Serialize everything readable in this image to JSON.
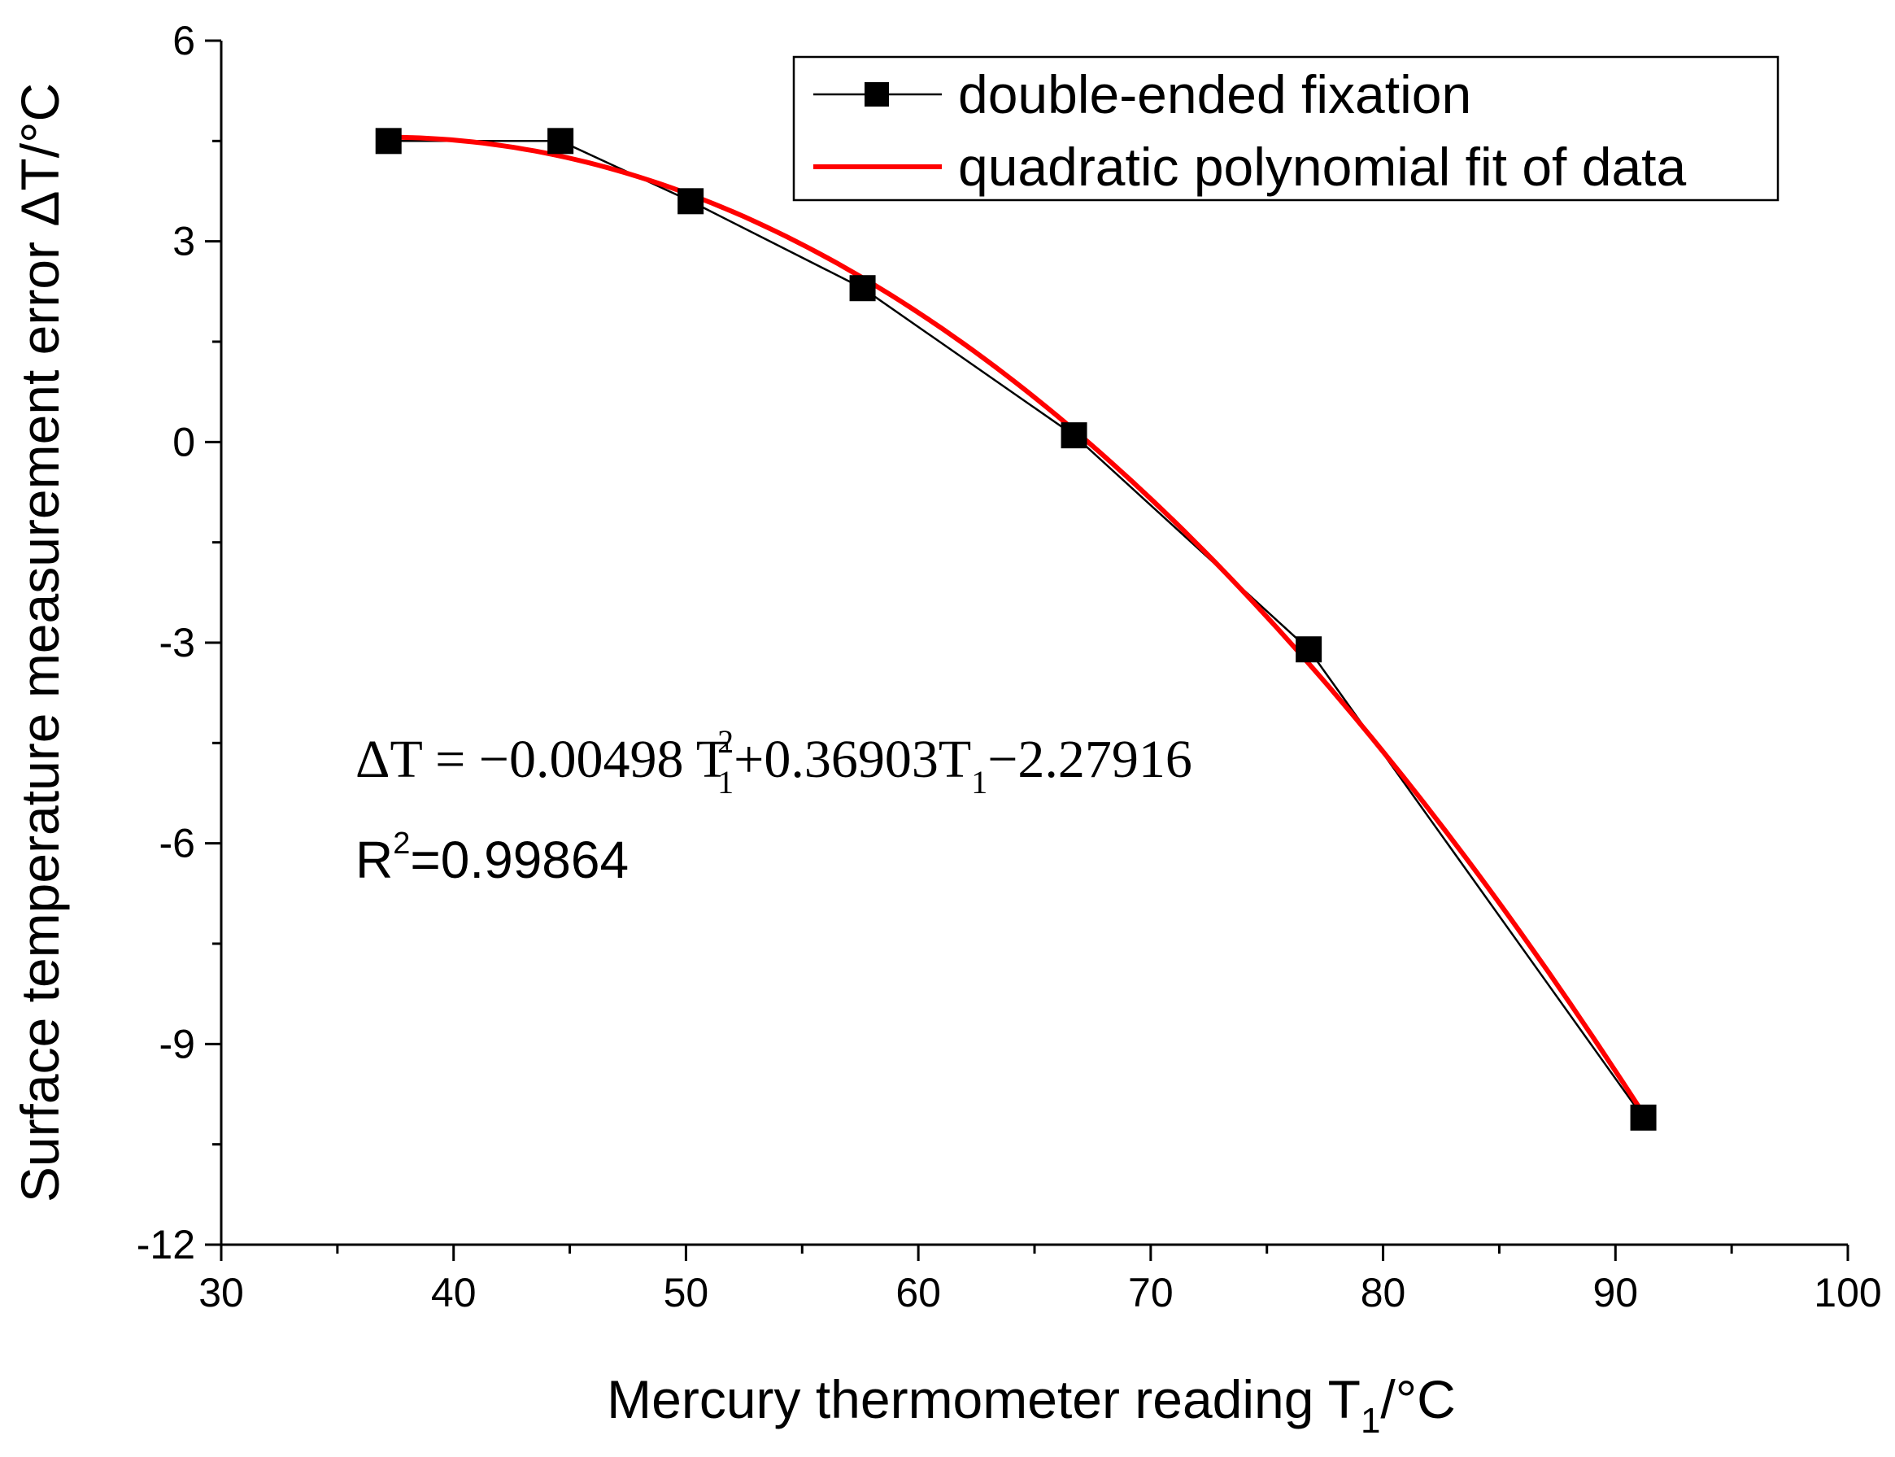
{
  "chart_data": {
    "type": "line",
    "xlabel_main": "Mercury thermometer reading T",
    "xlabel_sub": "1",
    "xlabel_unit": "/°C",
    "ylabel": "Surface temperature measurement error ΔT/°C",
    "xlim": [
      30,
      100
    ],
    "ylim": [
      -12,
      6
    ],
    "x_ticks": [
      "30",
      "40",
      "50",
      "60",
      "70",
      "80",
      "90",
      "100"
    ],
    "y_ticks": [
      "6",
      "3",
      "0",
      "-3",
      "-6",
      "-9",
      "-12"
    ],
    "legend_position": "top-right",
    "series": [
      {
        "name": "double-ended fixation",
        "color": "#000000",
        "marker": "square",
        "x": [
          37.2,
          44.6,
          50.2,
          57.6,
          66.7,
          76.8,
          91.2
        ],
        "y": [
          4.5,
          4.5,
          3.6,
          2.3,
          0.1,
          -3.1,
          -10.1
        ]
      },
      {
        "name": "quadratic polynomial fit of data",
        "color": "#ff0000",
        "marker": "none",
        "fit": {
          "a": -0.00498,
          "b": 0.36903,
          "c": -2.27916
        },
        "x_range": [
          37.2,
          91.2
        ]
      }
    ],
    "annotations": {
      "eq_lhs": "ΔT = −0.00498 T",
      "eq_sup": "2",
      "eq_sub1": "1",
      "eq_mid": "+0.36903T",
      "eq_sub2": "1",
      "eq_end": "−2.27916",
      "r2_pre": "R",
      "r2_sup": "2",
      "r2_post": "=0.99864"
    }
  }
}
